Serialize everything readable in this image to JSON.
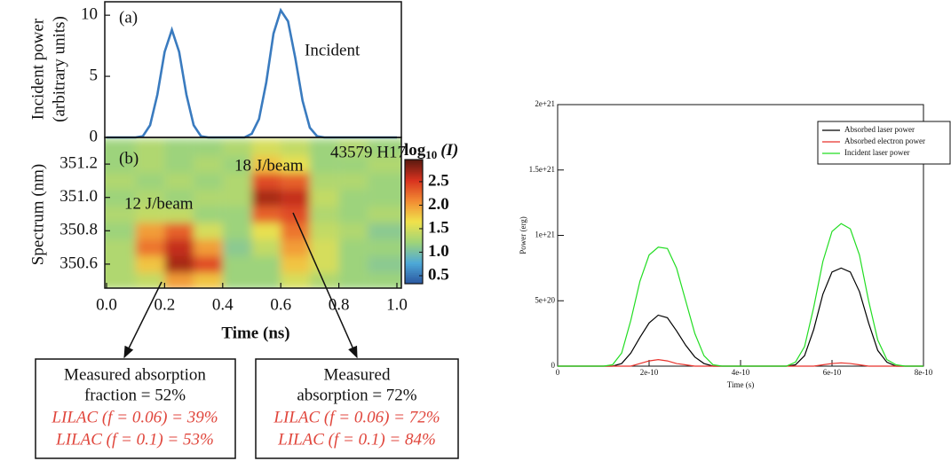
{
  "chart_data": [
    {
      "type": "line",
      "panel_label": "(a)",
      "ylabel": [
        "Incident power",
        "(arbitrary units)"
      ],
      "xlim": [
        0,
        1
      ],
      "ylim": [
        0,
        11.1
      ],
      "yticks": [
        0,
        5,
        10
      ],
      "x": [
        0,
        0.025,
        0.05,
        0.075,
        0.1,
        0.125,
        0.15,
        0.175,
        0.2,
        0.225,
        0.25,
        0.275,
        0.3,
        0.325,
        0.35,
        0.375,
        0.4,
        0.425,
        0.45,
        0.475,
        0.5,
        0.525,
        0.55,
        0.575,
        0.6,
        0.625,
        0.65,
        0.675,
        0.7,
        0.725,
        0.75,
        0.775,
        0.8,
        0.825,
        0.85,
        0.875,
        0.9,
        0.925,
        0.95,
        0.975,
        1
      ],
      "series": [
        {
          "name": "Incident",
          "color": "#3a7bbf",
          "values": [
            0,
            0,
            0,
            0,
            0,
            0.1,
            1.0,
            3.5,
            7.0,
            8.8,
            7.0,
            3.5,
            1.0,
            0.1,
            0,
            0,
            0,
            0,
            0,
            0,
            0.3,
            1.5,
            4.5,
            8.5,
            10.4,
            9.5,
            6.5,
            3.0,
            0.8,
            0.1,
            0,
            0,
            0,
            0,
            0,
            0,
            0,
            0,
            0,
            0,
            0
          ]
        }
      ]
    },
    {
      "type": "heatmap",
      "panel_label": "(b)",
      "ylabel": "Spectrum (nm)",
      "xlabel": "Time (ns)",
      "xlim": [
        0,
        1
      ],
      "ylim": [
        350.456,
        351.36
      ],
      "xticks": [
        {
          "value": 0,
          "label": "0.0"
        },
        0.2,
        0.4,
        0.6,
        0.8,
        {
          "value": 1,
          "label": "1.0"
        }
      ],
      "yticks": [
        350.6,
        350.8,
        {
          "value": 351,
          "label": "351.0"
        },
        351.2
      ],
      "annotations": [
        "43579 H17",
        "12 J/beam",
        "18 J/beam"
      ],
      "colorbar_label": [
        "log",
        "10",
        "(I)"
      ],
      "zlim": [
        0.33,
        2.97
      ],
      "zticks": [
        0.5,
        {
          "value": 1,
          "label": "1.0"
        },
        1.5,
        {
          "value": 2,
          "label": "2.0"
        },
        2.5
      ],
      "colormap": [
        "#2a56a0",
        "#4ea9d8",
        "#9fd479",
        "#f1e24b",
        "#f28b33",
        "#d8321f",
        "#5a1a10"
      ],
      "x": [
        0.05,
        0.15,
        0.25,
        0.35,
        0.45,
        0.55,
        0.65,
        0.75,
        0.85,
        0.95
      ],
      "y": [
        350.5,
        350.6,
        350.7,
        350.8,
        350.9,
        351.0,
        351.1,
        351.2,
        351.3
      ],
      "z": [
        [
          1.3,
          1.4,
          2.0,
          1.8,
          1.2,
          1.2,
          1.5,
          1.3,
          1.2,
          1.2
        ],
        [
          1.3,
          1.8,
          2.7,
          2.4,
          1.2,
          1.2,
          1.8,
          1.5,
          1.2,
          1.1
        ],
        [
          1.3,
          2.2,
          2.6,
          2.0,
          1.1,
          1.4,
          2.0,
          1.5,
          1.2,
          1.2
        ],
        [
          1.2,
          2.0,
          2.3,
          1.5,
          1.2,
          1.6,
          2.2,
          1.4,
          1.3,
          1.1
        ],
        [
          1.3,
          1.4,
          1.4,
          1.2,
          1.2,
          2.3,
          2.4,
          1.3,
          1.2,
          1.3
        ],
        [
          1.2,
          1.3,
          1.2,
          1.3,
          1.3,
          2.7,
          2.6,
          1.4,
          1.2,
          1.2
        ],
        [
          1.3,
          1.2,
          1.3,
          1.2,
          1.3,
          2.4,
          2.3,
          1.3,
          1.3,
          1.2
        ],
        [
          1.2,
          1.3,
          1.2,
          1.3,
          1.2,
          1.8,
          1.6,
          1.2,
          1.2,
          1.3
        ],
        [
          1.2,
          1.3,
          1.2,
          1.2,
          1.3,
          1.5,
          1.4,
          1.2,
          1.3,
          1.2
        ]
      ],
      "callouts": [
        {
          "lines": [
            "Measured absorption",
            "fraction = 52%",
            "LILAC (f = 0.06) = 39%",
            "LILAC (f = 0.1) = 53%"
          ]
        },
        {
          "lines": [
            "Measured",
            "absorption = 72%",
            "LILAC (f = 0.06) = 72%",
            "LILAC (f = 0.1) = 84%"
          ]
        }
      ]
    },
    {
      "type": "line",
      "xlabel": "Time (s)",
      "ylabel": "Power (erg)",
      "legend": "upper right",
      "xlim": [
        0,
        8e-10
      ],
      "ylim": [
        0,
        2e+21
      ],
      "xticks": [
        0,
        {
          "value": 2e-10,
          "label": "2e-10"
        },
        {
          "value": 4e-10,
          "label": "4e-10"
        },
        {
          "value": 6e-10,
          "label": "6e-10"
        },
        {
          "value": 8e-10,
          "label": "8e-10"
        }
      ],
      "yticks": [
        0,
        {
          "value": 5e+20,
          "label": "5e+20"
        },
        {
          "value": 1e+21,
          "label": "1e+21"
        },
        {
          "value": 1.5e+21,
          "label": "1.5e+21"
        },
        {
          "value": 2e+21,
          "label": "2e+21"
        }
      ],
      "x": [
        0,
        2e-11,
        4e-11,
        6e-11,
        8e-11,
        1e-10,
        1.2e-10,
        1.4e-10,
        1.6e-10,
        1.8e-10,
        2e-10,
        2.2e-10,
        2.4e-10,
        2.6e-10,
        2.8e-10,
        3e-10,
        3.2e-10,
        3.4e-10,
        3.6e-10,
        3.8e-10,
        4e-10,
        4.2e-10,
        4.4e-10,
        4.6e-10,
        4.8e-10,
        5e-10,
        5.2e-10,
        5.4e-10,
        5.6e-10,
        5.8e-10,
        6e-10,
        6.2e-10,
        6.4e-10,
        6.6e-10,
        6.8e-10,
        7e-10,
        7.2e-10,
        7.4e-10,
        7.6e-10,
        7.8e-10,
        8e-10
      ],
      "series": [
        {
          "name": "Absorbed laser power",
          "color": "#000000",
          "values": [
            0,
            0,
            0,
            0,
            0,
            0,
            0,
            2e+19,
            1e+20,
            2.2e+20,
            3.3e+20,
            3.9e+20,
            3.7e+20,
            2.7e+20,
            1.6e+20,
            7e+19,
            2e+19,
            0,
            0,
            0,
            0,
            0,
            0,
            0,
            0,
            0,
            1e+19,
            8e+19,
            2.8e+20,
            5.5e+20,
            7.2e+20,
            7.5e+20,
            7.2e+20,
            5.7e+20,
            3.3e+20,
            1.2e+20,
            3e+19,
            0,
            0,
            0,
            0
          ]
        },
        {
          "name": "Absorbed electron power",
          "color": "#e8322b",
          "values": [
            0,
            0,
            0,
            0,
            0,
            0,
            0,
            0,
            0,
            2e+19,
            4e+19,
            5e+19,
            4e+19,
            2e+19,
            1e+19,
            0,
            0,
            0,
            0,
            0,
            0,
            0,
            0,
            0,
            0,
            0,
            0,
            0,
            0,
            1e+19,
            2e+19,
            2.5e+19,
            2e+19,
            1e+19,
            0,
            0,
            0,
            0,
            0,
            0,
            0
          ]
        },
        {
          "name": "Incident laser power",
          "color": "#22dd22",
          "values": [
            0,
            0,
            0,
            0,
            0,
            0,
            1e+19,
            1e+20,
            3.5e+20,
            6.5e+20,
            8.5e+20,
            9.1e+20,
            9e+20,
            7.5e+20,
            5e+20,
            2.5e+20,
            8e+19,
            1e+19,
            0,
            0,
            0,
            0,
            0,
            0,
            0,
            0,
            3e+19,
            1.5e+20,
            4.5e+20,
            8e+20,
            1.03e+21,
            1.09e+21,
            1.05e+21,
            8.5e+20,
            5e+20,
            2e+20,
            5e+19,
            1e+19,
            0,
            0,
            0
          ]
        }
      ]
    }
  ]
}
